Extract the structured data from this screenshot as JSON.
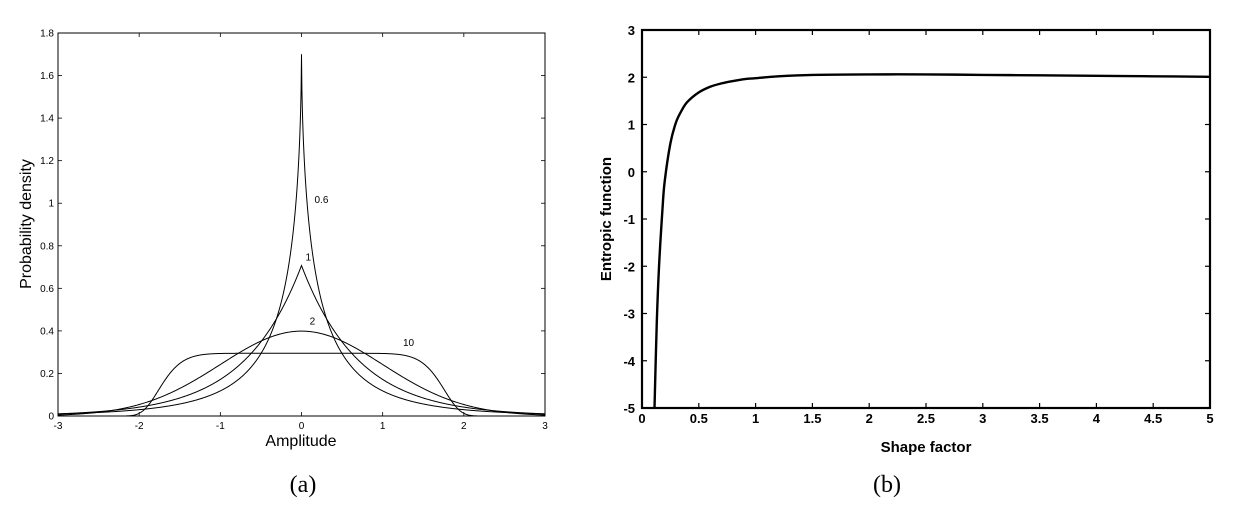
{
  "panels": {
    "a": {
      "label": "(a)"
    },
    "b": {
      "label": "(b)"
    }
  },
  "chart_data": [
    {
      "type": "line",
      "panel": "(a)",
      "xlabel": "Amplitude",
      "ylabel": "Probability density",
      "xlim": [
        -3,
        3
      ],
      "ylim": [
        0,
        1.8
      ],
      "x_ticks": [
        "-3",
        "-2",
        "-1",
        "0",
        "1",
        "2",
        "3"
      ],
      "y_ticks": [
        "0",
        "0.2",
        "0.4",
        "0.6",
        "0.8",
        "1",
        "1.2",
        "1.4",
        "1.6",
        "1.8"
      ],
      "grid": false,
      "series": [
        {
          "name": "0.6",
          "shape_factor": 0.6,
          "peak": 1.7
        },
        {
          "name": "1",
          "shape_factor": 1,
          "peak": 0.707
        },
        {
          "name": "2",
          "shape_factor": 2,
          "peak": 0.399
        },
        {
          "name": "10",
          "shape_factor": 10,
          "peak": 0.295
        }
      ]
    },
    {
      "type": "line",
      "panel": "(b)",
      "xlabel": "Shape factor",
      "ylabel": "Entropic function",
      "xlim": [
        0,
        5
      ],
      "ylim": [
        -5,
        3
      ],
      "x_ticks": [
        "0",
        "0.5",
        "1",
        "1.5",
        "2",
        "2.5",
        "3",
        "3.5",
        "4",
        "4.5",
        "5"
      ],
      "y_ticks": [
        "-5",
        "-4",
        "-3",
        "-2",
        "-1",
        "0",
        "1",
        "2",
        "3"
      ],
      "grid": false,
      "series": [
        {
          "x": [
            0.11,
            0.13,
            0.15,
            0.18,
            0.2,
            0.25,
            0.3,
            0.35,
            0.4,
            0.5,
            0.6,
            0.7,
            0.8,
            0.9,
            1.0,
            1.2,
            1.5,
            2.0,
            2.5,
            3.0,
            3.5,
            4.0,
            4.5,
            5.0
          ],
          "y": [
            -5.0,
            -3.2,
            -2.0,
            -0.8,
            -0.2,
            0.6,
            1.05,
            1.3,
            1.48,
            1.68,
            1.8,
            1.87,
            1.92,
            1.96,
            1.98,
            2.02,
            2.05,
            2.06,
            2.06,
            2.05,
            2.04,
            2.03,
            2.02,
            2.01
          ]
        }
      ]
    }
  ]
}
